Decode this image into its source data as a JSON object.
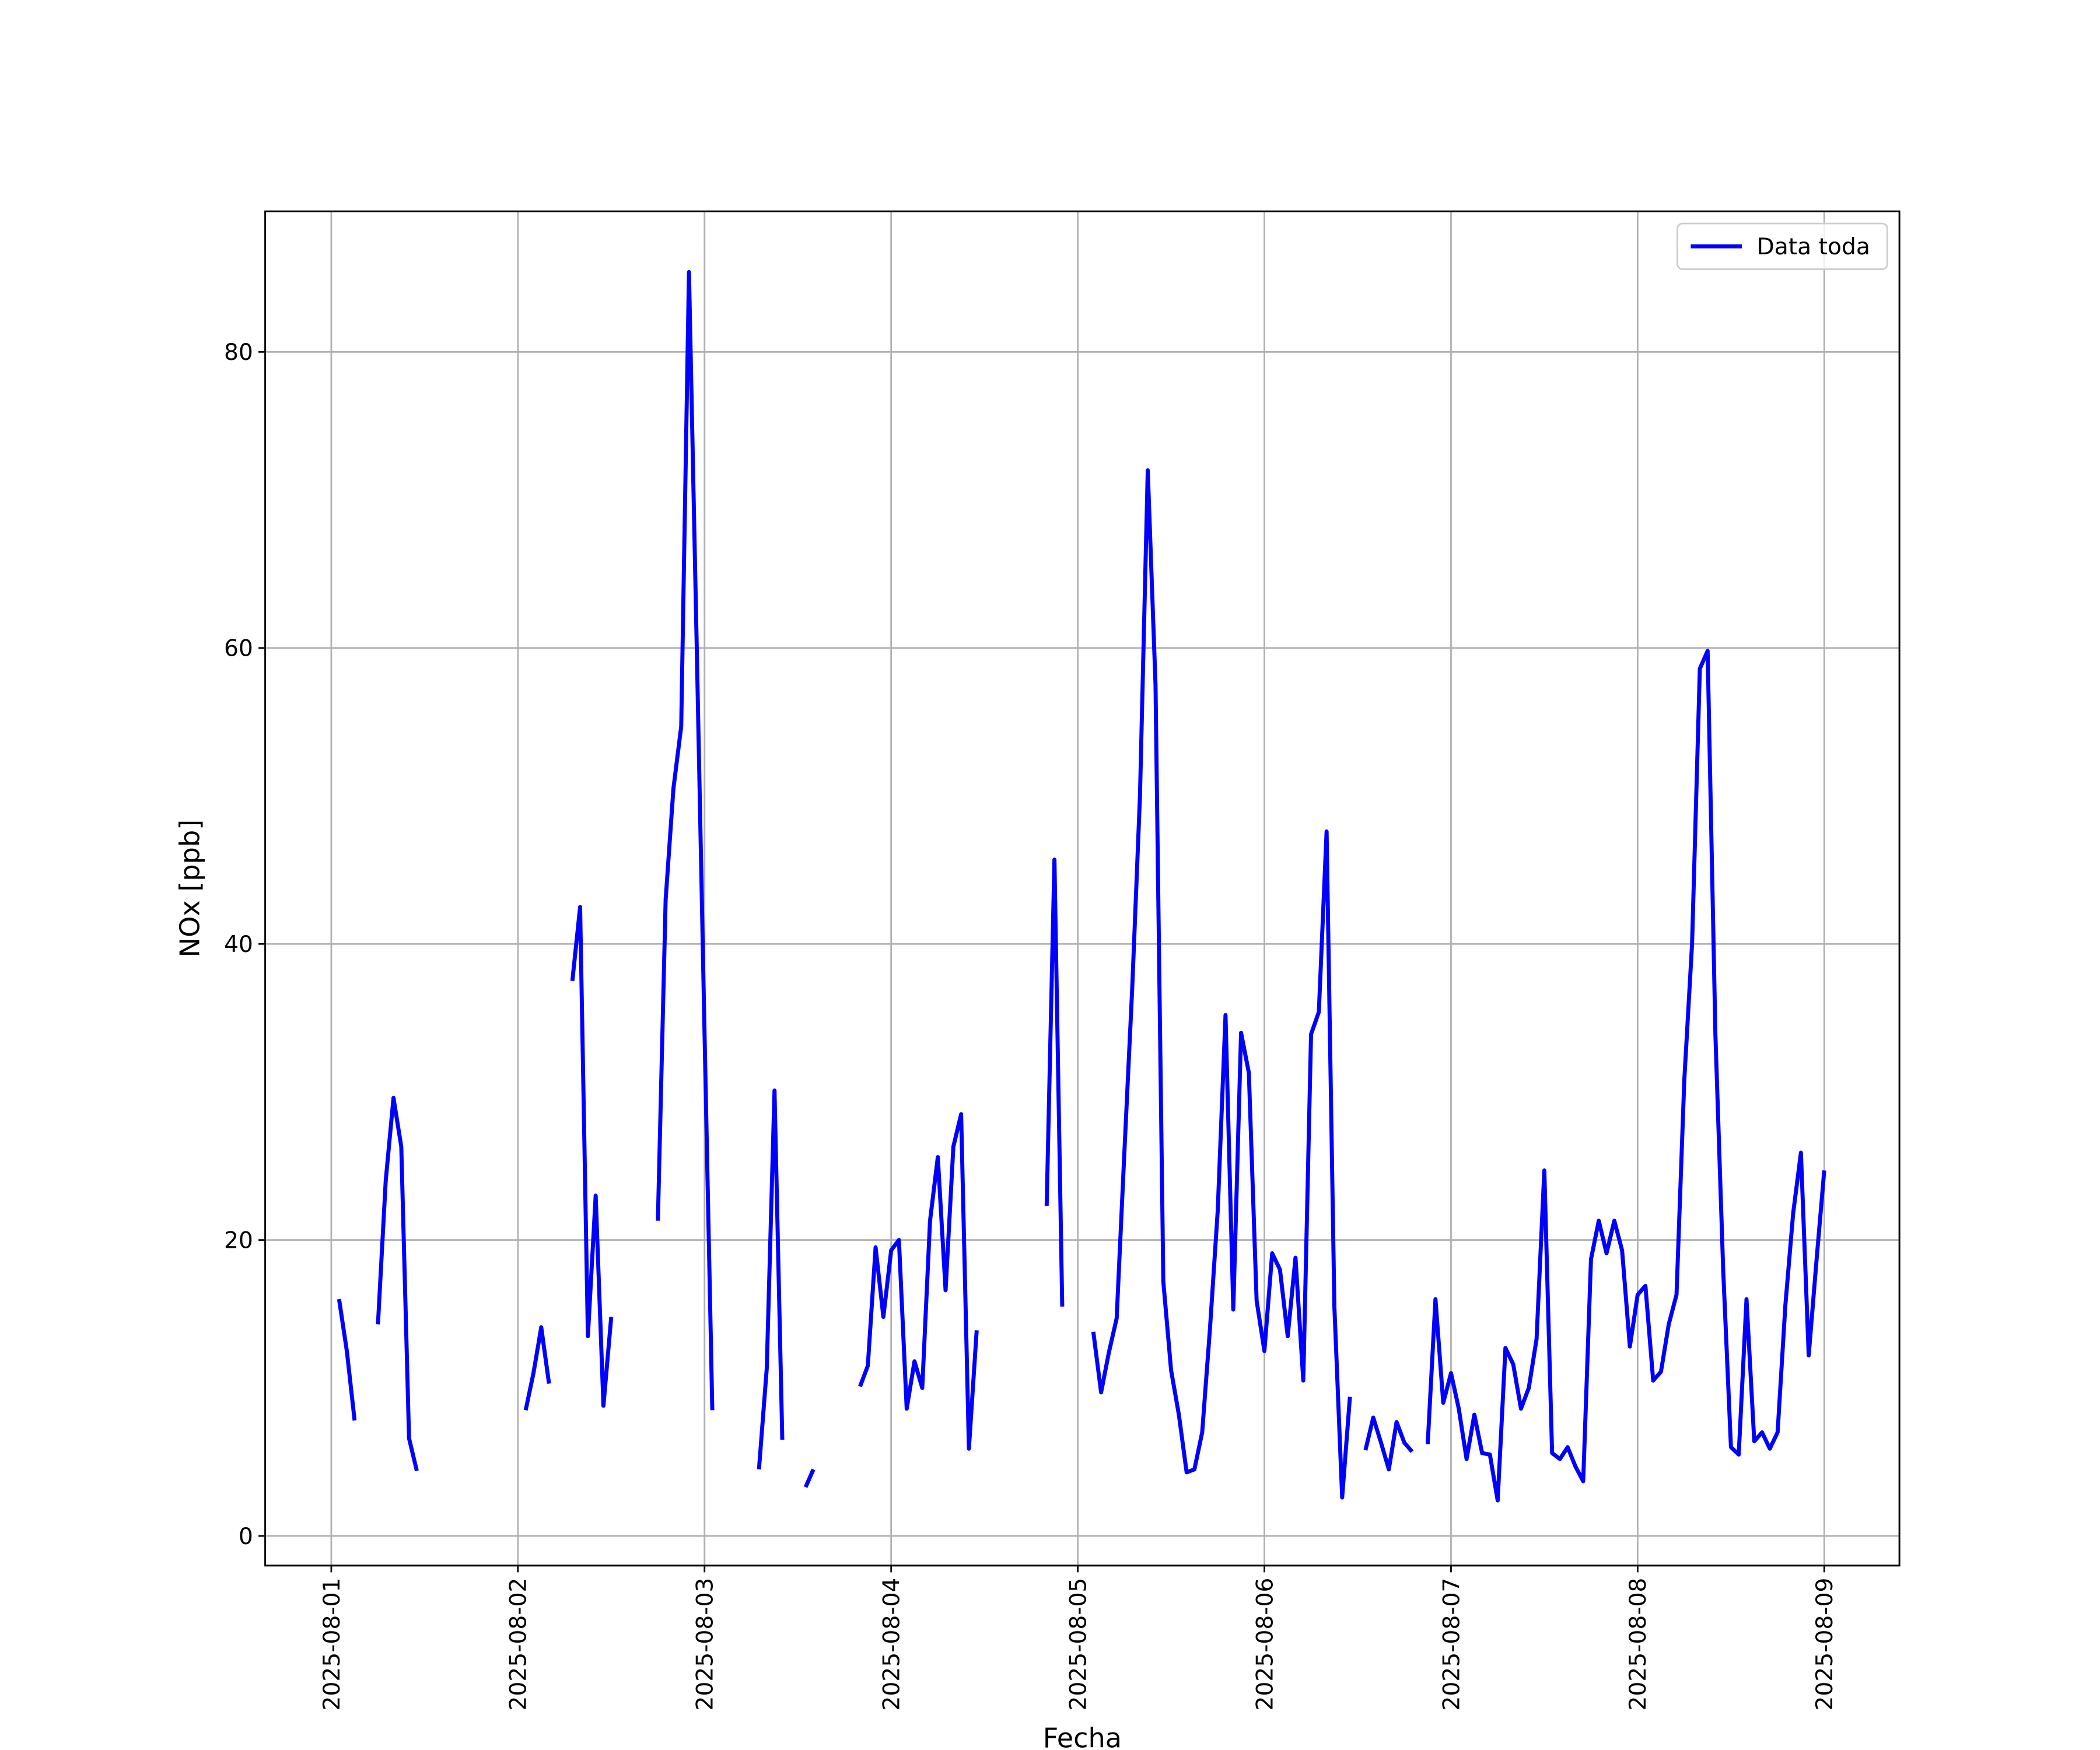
{
  "chart_data": {
    "type": "line",
    "xlabel": "Fecha",
    "ylabel": "NOx [ppb]",
    "legend": "upper right",
    "grid": true,
    "xlim": [
      "2025-07-31 15:30",
      "2025-08-09 09:40"
    ],
    "xticks": [
      "2025-08-01",
      "2025-08-02",
      "2025-08-03",
      "2025-08-04",
      "2025-08-05",
      "2025-08-06",
      "2025-08-07",
      "2025-08-08",
      "2025-08-09"
    ],
    "ylim": [
      -2,
      89.5
    ],
    "yticks": [
      0,
      20,
      40,
      60,
      80
    ],
    "x": [
      "2025-08-01 01:00",
      "2025-08-01 02:00",
      "2025-08-01 03:00",
      "2025-08-01 04:00",
      "2025-08-01 06:00",
      "2025-08-01 07:00",
      "2025-08-01 08:00",
      "2025-08-01 09:00",
      "2025-08-01 10:00",
      "2025-08-01 11:00",
      "2025-08-01 12:00",
      "2025-08-02 01:00",
      "2025-08-02 02:00",
      "2025-08-02 03:00",
      "2025-08-02 04:00",
      "2025-08-02 05:00",
      "2025-08-02 07:00",
      "2025-08-02 08:00",
      "2025-08-02 09:00",
      "2025-08-02 10:00",
      "2025-08-02 11:00",
      "2025-08-02 12:00",
      "2025-08-02 13:00",
      "2025-08-02 18:00",
      "2025-08-02 19:00",
      "2025-08-02 20:00",
      "2025-08-02 21:00",
      "2025-08-02 22:00",
      "2025-08-02 23:00",
      "2025-08-03 00:00",
      "2025-08-03 01:00",
      "2025-08-03 02:00",
      "2025-08-03 07:00",
      "2025-08-03 08:00",
      "2025-08-03 09:00",
      "2025-08-03 10:00",
      "2025-08-03 11:00",
      "2025-08-03 13:00",
      "2025-08-03 14:00",
      "2025-08-03 15:00",
      "2025-08-03 20:00",
      "2025-08-03 21:00",
      "2025-08-03 22:00",
      "2025-08-03 23:00",
      "2025-08-04 00:00",
      "2025-08-04 01:00",
      "2025-08-04 02:00",
      "2025-08-04 03:00",
      "2025-08-04 04:00",
      "2025-08-04 05:00",
      "2025-08-04 06:00",
      "2025-08-04 07:00",
      "2025-08-04 08:00",
      "2025-08-04 09:00",
      "2025-08-04 10:00",
      "2025-08-04 11:00",
      "2025-08-04 12:00",
      "2025-08-04 20:00",
      "2025-08-04 21:00",
      "2025-08-04 22:00",
      "2025-08-04 23:00",
      "2025-08-05 02:00",
      "2025-08-05 03:00",
      "2025-08-05 04:00",
      "2025-08-05 05:00",
      "2025-08-05 06:00",
      "2025-08-05 07:00",
      "2025-08-05 08:00",
      "2025-08-05 09:00",
      "2025-08-05 10:00",
      "2025-08-05 11:00",
      "2025-08-05 12:00",
      "2025-08-05 13:00",
      "2025-08-05 14:00",
      "2025-08-05 15:00",
      "2025-08-05 16:00",
      "2025-08-05 17:00",
      "2025-08-05 18:00",
      "2025-08-05 19:00",
      "2025-08-05 20:00",
      "2025-08-05 21:00",
      "2025-08-05 22:00",
      "2025-08-05 23:00",
      "2025-08-06 00:00",
      "2025-08-06 01:00",
      "2025-08-06 02:00",
      "2025-08-06 03:00",
      "2025-08-06 04:00",
      "2025-08-06 05:00",
      "2025-08-06 06:00",
      "2025-08-06 07:00",
      "2025-08-06 08:00",
      "2025-08-06 09:00",
      "2025-08-06 10:00",
      "2025-08-06 11:00",
      "2025-08-06 12:00",
      "2025-08-06 13:00",
      "2025-08-06 14:00",
      "2025-08-06 15:00",
      "2025-08-06 16:00",
      "2025-08-06 17:00",
      "2025-08-06 18:00",
      "2025-08-06 19:00",
      "2025-08-06 20:00",
      "2025-08-06 21:00",
      "2025-08-06 22:00",
      "2025-08-06 23:00",
      "2025-08-07 00:00",
      "2025-08-07 01:00",
      "2025-08-07 02:00",
      "2025-08-07 03:00",
      "2025-08-07 04:00",
      "2025-08-07 05:00",
      "2025-08-07 06:00",
      "2025-08-07 07:00",
      "2025-08-07 08:00",
      "2025-08-07 09:00",
      "2025-08-07 10:00",
      "2025-08-07 11:00",
      "2025-08-07 12:00",
      "2025-08-07 13:00",
      "2025-08-07 14:00",
      "2025-08-07 15:00",
      "2025-08-07 16:00",
      "2025-08-07 17:00",
      "2025-08-07 18:00",
      "2025-08-07 19:00",
      "2025-08-07 20:00",
      "2025-08-07 21:00",
      "2025-08-07 22:00",
      "2025-08-07 23:00",
      "2025-08-08 00:00",
      "2025-08-08 01:00",
      "2025-08-08 02:00",
      "2025-08-08 03:00",
      "2025-08-08 04:00",
      "2025-08-08 05:00",
      "2025-08-08 06:00",
      "2025-08-08 07:00",
      "2025-08-08 08:00",
      "2025-08-08 09:00",
      "2025-08-08 10:00",
      "2025-08-08 11:00",
      "2025-08-08 12:00",
      "2025-08-08 13:00",
      "2025-08-08 14:00",
      "2025-08-08 15:00",
      "2025-08-08 16:00",
      "2025-08-08 17:00",
      "2025-08-08 18:00",
      "2025-08-08 19:00",
      "2025-08-08 20:00",
      "2025-08-08 21:00",
      "2025-08-08 22:00",
      "2025-08-08 23:00",
      "2025-08-09 00:00"
    ],
    "series": [
      {
        "name": "Data toda",
        "color": "#0000ff",
        "values": [
          16,
          12.5,
          7.8,
          null,
          14.3,
          24,
          29.6,
          26.3,
          6.6,
          4.4,
          null,
          8.5,
          11,
          14.1,
          10.3,
          null,
          37.5,
          42.5,
          13.5,
          23,
          8.8,
          14.8,
          null,
          21.3,
          43,
          50.5,
          54.7,
          85.4,
          60,
          34,
          8.5,
          null,
          4.5,
          11.3,
          30.1,
          6.5,
          null,
          3.3,
          4.5,
          null,
          10.1,
          11.5,
          19.5,
          14.8,
          19.3,
          20,
          8.6,
          11.8,
          10,
          21.3,
          25.6,
          16.6,
          26.3,
          28.5,
          5.9,
          13.9,
          null,
          22.3,
          45.7,
          15.5,
          null,
          13.8,
          9.7,
          12.4,
          14.7,
          26,
          37,
          50,
          72,
          57.5,
          17.2,
          11.2,
          8.2,
          4.3,
          4.5,
          7,
          14,
          22,
          35.2,
          15.3,
          34,
          31.3,
          15.9,
          12.5,
          19.1,
          18,
          13.5,
          18.8,
          10.5,
          33.9,
          35.4,
          47.6,
          15.5,
          2.6,
          9.4,
          null,
          5.8,
          8,
          6.3,
          4.5,
          7.7,
          6.3,
          5.7,
          null,
          6.2,
          16,
          9,
          11,
          8.6,
          5.2,
          8.2,
          5.6,
          5.5,
          2.4,
          12.7,
          11.6,
          8.6,
          10,
          13.3,
          24.7,
          5.6,
          5.2,
          6,
          4.7,
          3.7,
          18.7,
          21.3,
          19.1,
          21.3,
          19.3,
          12.8,
          16.3,
          16.9,
          10.5,
          11.1,
          14.3,
          16.3,
          30.8,
          40,
          58.6,
          59.8,
          33.9,
          18,
          6,
          5.5,
          16,
          6.4,
          7,
          5.9,
          7,
          15.6,
          21.8,
          25.9,
          12.2,
          18.6,
          24.7
        ]
      }
    ]
  }
}
